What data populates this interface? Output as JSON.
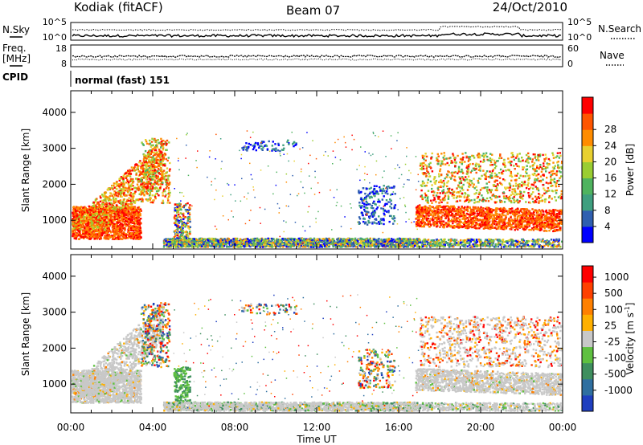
{
  "header": {
    "station": "Kodiak (fitACF)",
    "beam": "Beam 07",
    "date": "24/Oct/2010"
  },
  "panels": {
    "noise": {
      "left_label": "N.Sky",
      "right_label": "N.Search",
      "ticks_left": [
        "10^5",
        "10^0"
      ],
      "ticks_right": [
        "10^5",
        "10^0"
      ]
    },
    "freq": {
      "left_label_1": "Freq.",
      "left_label_2": "[MHz]",
      "right_label": "Nave",
      "ticks_left": [
        "18",
        "8"
      ],
      "ticks_right": [
        "60",
        "0"
      ]
    },
    "cpid": {
      "label": "CPID",
      "text": "normal (fast) 151"
    }
  },
  "chart_data": [
    {
      "type": "heatmap",
      "name": "power",
      "ylabel": "Slant Range [km]",
      "xlabel": "Time UT",
      "ylim": [
        200,
        4600
      ],
      "yticks": [
        "1000",
        "2000",
        "3000",
        "4000"
      ],
      "xticks": [
        "00:00",
        "04:00",
        "08:00",
        "12:00",
        "16:00",
        "20:00",
        "00:00"
      ],
      "colorbar": {
        "label": "Power [dB]",
        "ticks": [
          "4",
          "8",
          "12",
          "16",
          "20",
          "24",
          "28"
        ],
        "colors": [
          "#0000ff",
          "#2f5fb0",
          "#3f9f7f",
          "#4fb35f",
          "#9acd32",
          "#e8d030",
          "#ff8c00",
          "#ff5500",
          "#ff0000"
        ]
      }
    },
    {
      "type": "heatmap",
      "name": "velocity",
      "ylabel": "Slant Range [km]",
      "xlabel": "Time UT",
      "ylim": [
        200,
        4600
      ],
      "yticks": [
        "1000",
        "2000",
        "3000",
        "4000"
      ],
      "xticks": [
        "00:00",
        "04:00",
        "08:00",
        "12:00",
        "16:00",
        "20:00",
        "00:00"
      ],
      "colorbar": {
        "label": "Velocity [m s",
        "label_sup": "-1",
        "label_close": "]",
        "ticks": [
          "1000",
          "500",
          "100",
          "25",
          "-25",
          "-100",
          "-500",
          "-1000"
        ],
        "colors": [
          "#1f3fbf",
          "#2f6fa0",
          "#3f8f5f",
          "#5fc040",
          "#c8c8c8",
          "#ffb000",
          "#ff8000",
          "#ff4000",
          "#ff0000"
        ]
      }
    }
  ],
  "xaxis": {
    "label": "Time UT"
  }
}
